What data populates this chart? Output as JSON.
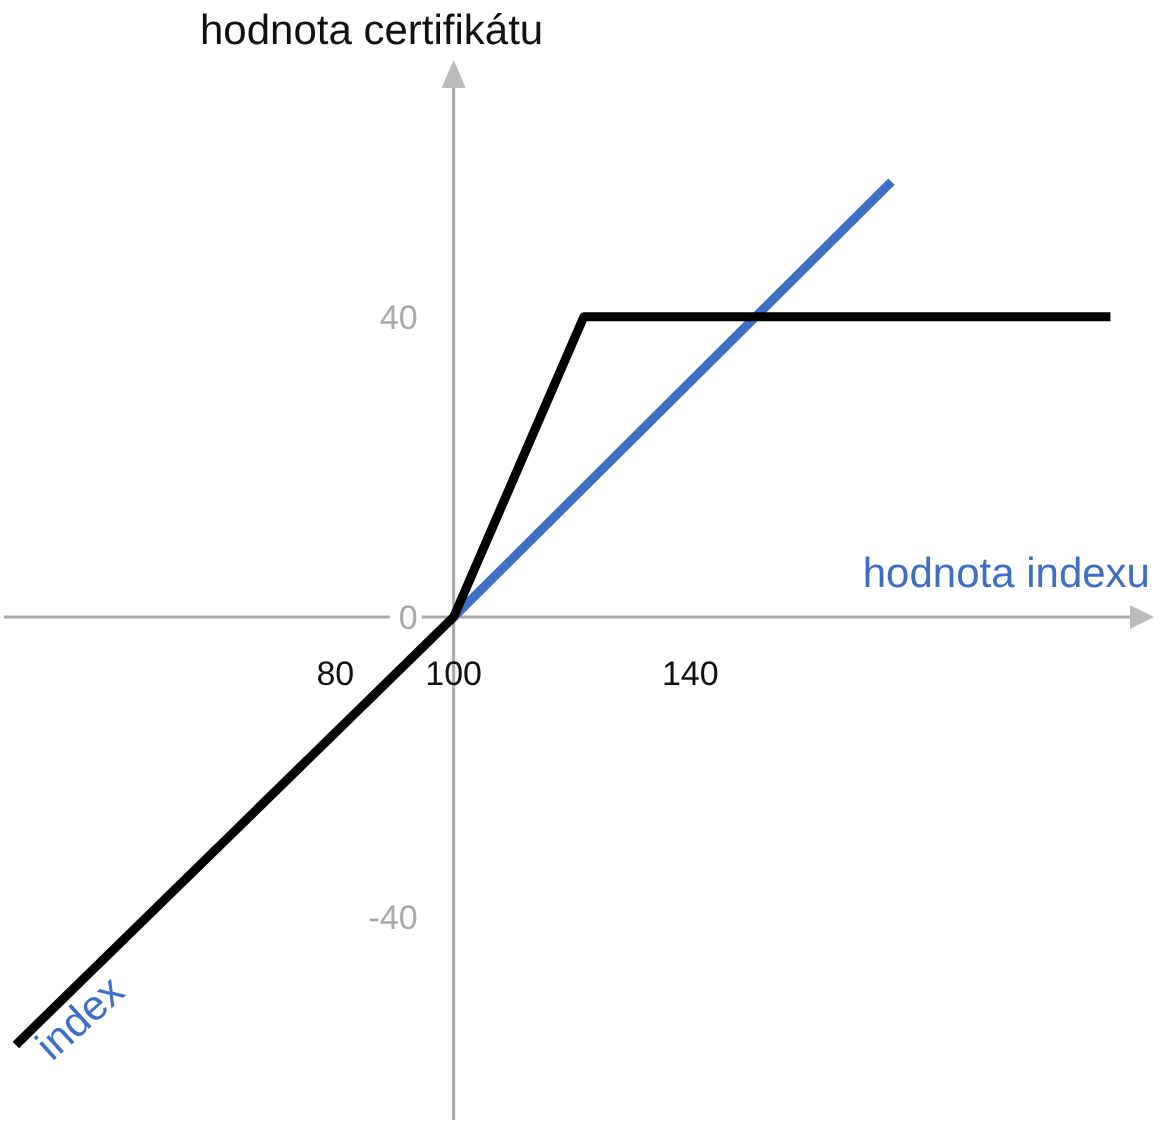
{
  "chart_data": {
    "type": "line",
    "ylabel": "hodnota certifikátu",
    "xlabel": "hodnota indexu",
    "xlim": [
      24,
      216
    ],
    "ylim": [
      -67,
      71
    ],
    "xticks": [
      80,
      100,
      140
    ],
    "yticks": [
      -40,
      0,
      40
    ],
    "grid": false,
    "legend": false,
    "marker": "none",
    "line_style": "solid",
    "series": [
      {
        "name": "index",
        "color": "#3f6fc4",
        "x": [
          100,
          174
        ],
        "values": [
          0,
          58
        ]
      },
      {
        "color": "#000000",
        "x": [
          26,
          100,
          122,
          211
        ],
        "values": [
          -57,
          0,
          40,
          40
        ]
      }
    ]
  }
}
